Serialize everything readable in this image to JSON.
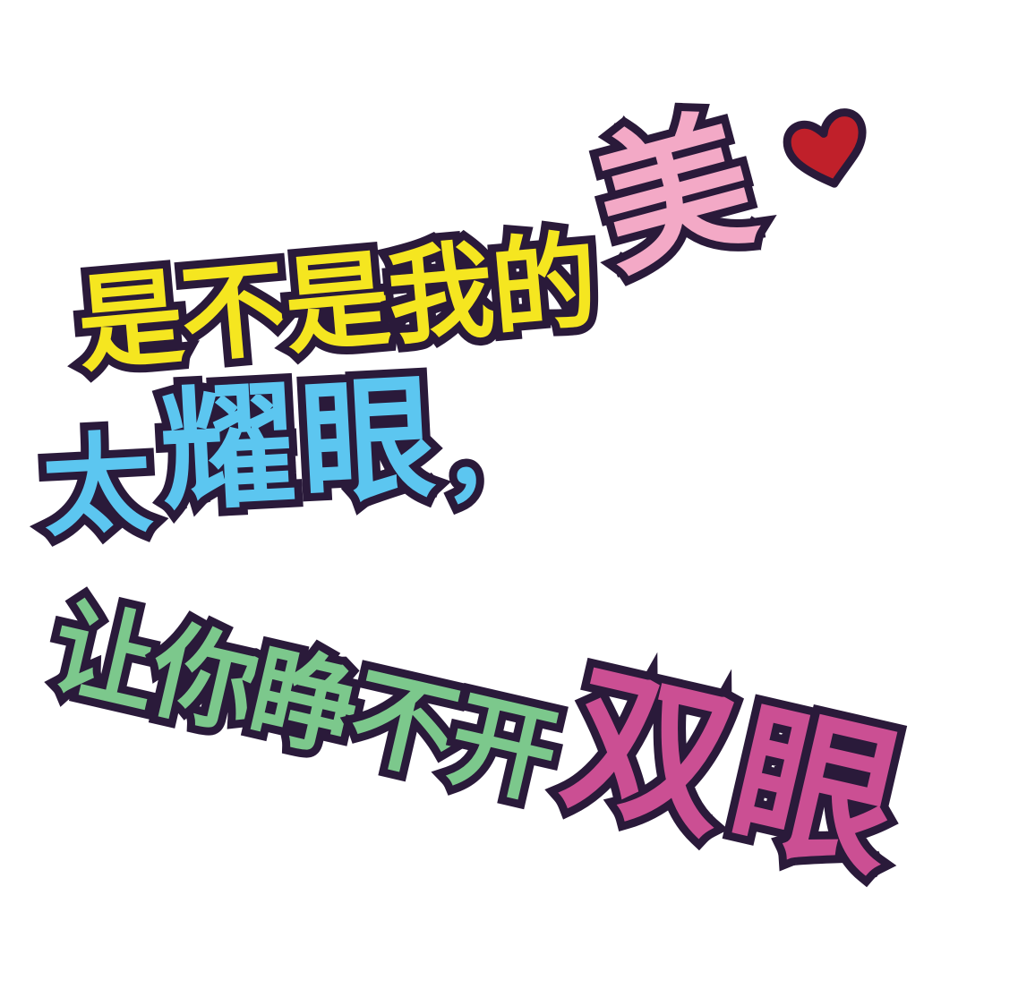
{
  "lines": [
    {
      "outline": "#2a1a3a",
      "segments": [
        {
          "text": "是",
          "color": "#f5e620",
          "size": "small"
        },
        {
          "text": "不",
          "color": "#f5e620",
          "size": "small"
        },
        {
          "text": "是",
          "color": "#f5e620",
          "size": "small"
        },
        {
          "text": "我",
          "color": "#f5e620",
          "size": "small"
        },
        {
          "text": "的",
          "color": "#f5e620",
          "size": "small"
        },
        {
          "text": "美",
          "color": "#f3a9c6",
          "size": "big"
        }
      ]
    },
    {
      "outline": "#2a1a3a",
      "segments": [
        {
          "text": "太",
          "color": "#5cc6f0",
          "size": "small"
        },
        {
          "text": "耀",
          "color": "#5cc6f0",
          "size": "mid"
        },
        {
          "text": "眼",
          "color": "#5cc6f0",
          "size": "mid"
        },
        {
          "text": "，",
          "color": "#5cc6f0",
          "size": "comma"
        }
      ]
    },
    {
      "outline": "#2a1a3a",
      "segments": [
        {
          "text": "让",
          "color": "#7cc88c",
          "size": "small"
        },
        {
          "text": "你",
          "color": "#7cc88c",
          "size": "small"
        },
        {
          "text": "睁",
          "color": "#7cc88c",
          "size": "small"
        },
        {
          "text": "不",
          "color": "#7cc88c",
          "size": "small"
        },
        {
          "text": "开",
          "color": "#7cc88c",
          "size": "small"
        },
        {
          "text": "双",
          "color": "#cb4f93",
          "size": "big"
        },
        {
          "text": "眼",
          "color": "#cb4f93",
          "size": "big"
        }
      ]
    }
  ],
  "heart": {
    "icon": "heart-icon",
    "fill": "#c0202a",
    "outline": "#2a1a3a"
  }
}
